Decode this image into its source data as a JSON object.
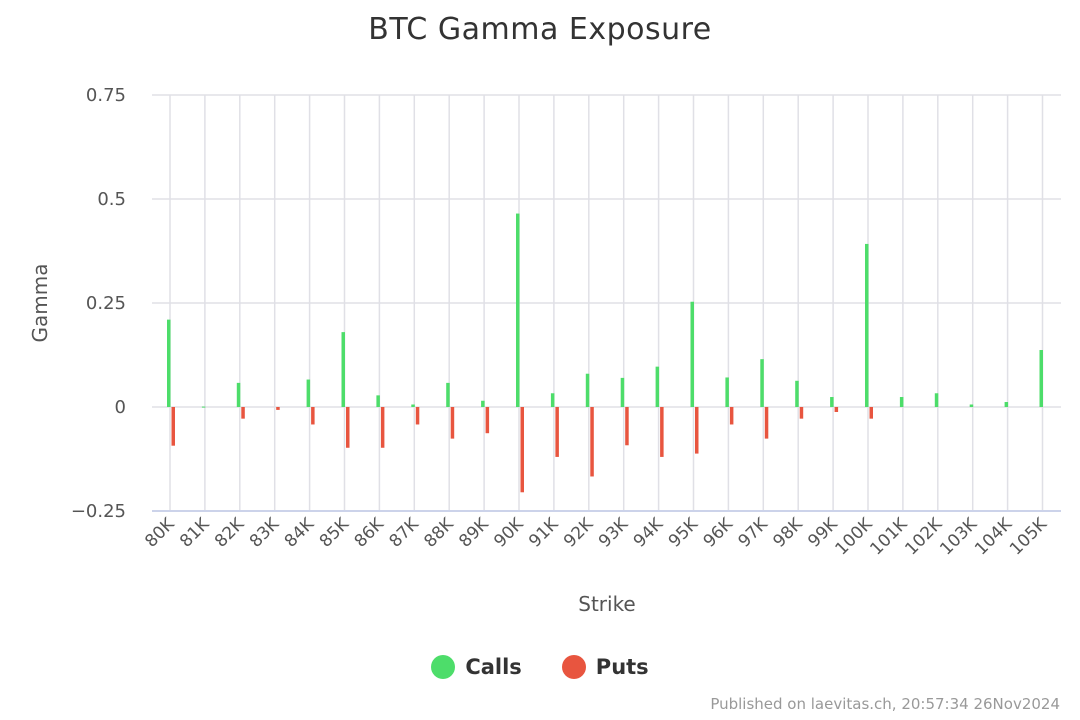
{
  "chart_data": {
    "type": "bar",
    "title": "BTC Gamma Exposure",
    "xlabel": "Strike",
    "ylabel": "Gamma",
    "ylim": [
      -0.25,
      0.75
    ],
    "yticks": [
      "0.75",
      "0.5",
      "0.25",
      "0",
      "−0.25"
    ],
    "ytick_values": [
      0.75,
      0.5,
      0.25,
      0,
      -0.25
    ],
    "grid": true,
    "legend_position": "bottom-center",
    "categories": [
      "80K",
      "81K",
      "82K",
      "83K",
      "84K",
      "85K",
      "86K",
      "87K",
      "88K",
      "89K",
      "90K",
      "91K",
      "92K",
      "93K",
      "94K",
      "95K",
      "96K",
      "97K",
      "98K",
      "99K",
      "100K",
      "101K",
      "102K",
      "103K",
      "104K",
      "105K"
    ],
    "series": [
      {
        "name": "Calls",
        "color": "#4ddd6a",
        "values": [
          0.21,
          0.001,
          0.058,
          0.0,
          0.066,
          0.18,
          0.028,
          0.006,
          0.058,
          0.015,
          0.465,
          0.033,
          0.08,
          0.07,
          0.097,
          0.253,
          0.071,
          0.115,
          0.063,
          0.024,
          0.392,
          0.024,
          0.033,
          0.006,
          0.012,
          0.137
        ]
      },
      {
        "name": "Puts",
        "color": "#e8553f",
        "values": [
          -0.093,
          0.0,
          -0.028,
          -0.007,
          -0.042,
          -0.098,
          -0.098,
          -0.042,
          -0.076,
          -0.063,
          -0.205,
          -0.12,
          -0.167,
          -0.092,
          -0.12,
          -0.112,
          -0.042,
          -0.076,
          -0.028,
          -0.012,
          -0.028,
          0.0,
          0.0,
          0.0,
          0.0,
          0.0
        ]
      }
    ]
  },
  "credit": "Published on laevitas.ch, 20:57:34 26Nov2024"
}
